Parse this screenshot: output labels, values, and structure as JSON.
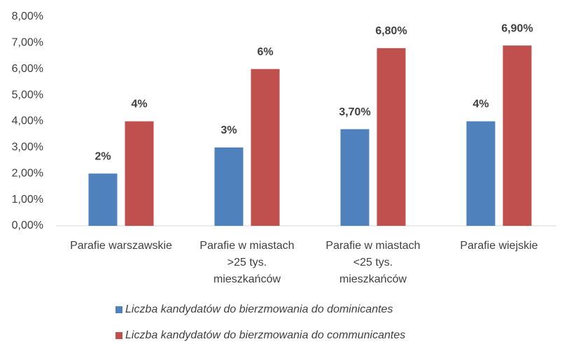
{
  "chart_data": {
    "type": "bar",
    "categories": [
      "Parafie warszawskie",
      "Parafie w miastach\n>25 tys.\nmieszkańców",
      "Parafie w miastach\n<25 tys.\nmieszkańców",
      "Parafie wiejskie"
    ],
    "series": [
      {
        "name": "Liczba kandydatów do bierzmowania do dominicantes",
        "color": "#4f81bd",
        "values": [
          2,
          3,
          3.7,
          4
        ],
        "value_labels": [
          "2%",
          "3%",
          "3,70%",
          "4%"
        ]
      },
      {
        "name": "Liczba kandydatów do bierzmowania do communicantes",
        "color": "#c0504d",
        "values": [
          4,
          6,
          6.8,
          6.9
        ],
        "value_labels": [
          "4%",
          "6%",
          "6,80%",
          "6,90%"
        ]
      }
    ],
    "ylim": [
      0,
      8
    ],
    "yticks": [
      {
        "value": 0,
        "label": "0,00%"
      },
      {
        "value": 1,
        "label": "1,00%"
      },
      {
        "value": 2,
        "label": "2,00%"
      },
      {
        "value": 3,
        "label": "3,00%"
      },
      {
        "value": 4,
        "label": "4,00%"
      },
      {
        "value": 5,
        "label": "5,00%"
      },
      {
        "value": 6,
        "label": "6,00%"
      },
      {
        "value": 7,
        "label": "7,00%"
      },
      {
        "value": 8,
        "label": "8,00%"
      }
    ],
    "grid": false
  }
}
